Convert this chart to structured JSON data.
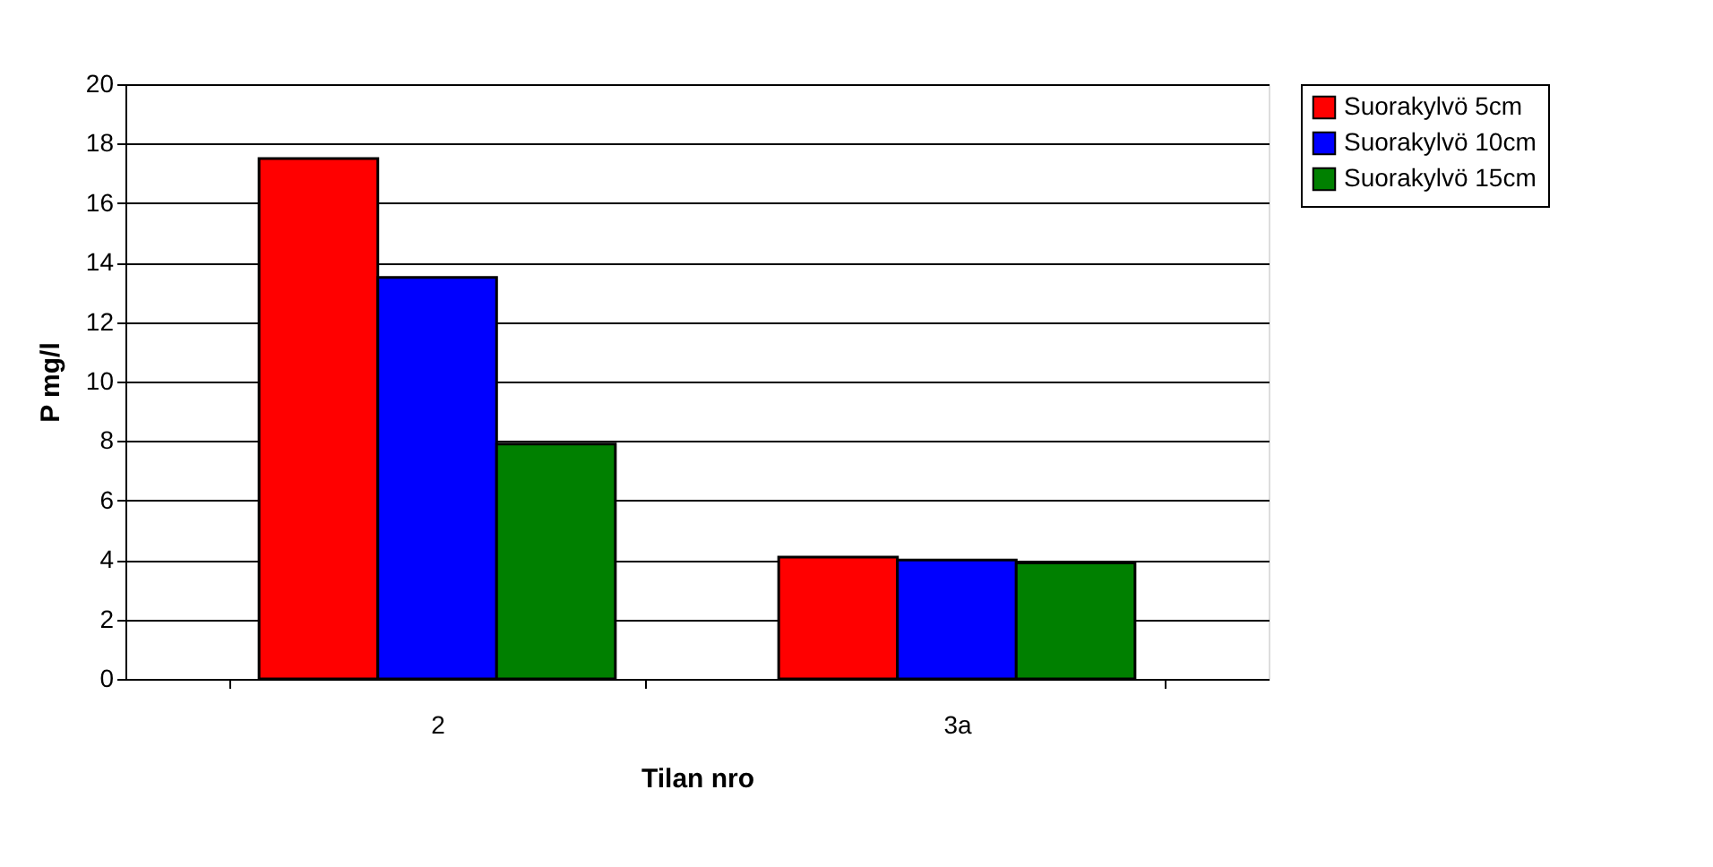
{
  "chart_data": {
    "type": "bar",
    "xlabel": "Tilan nro",
    "ylabel": "P mg/l",
    "categories": [
      "2",
      "3a"
    ],
    "series": [
      {
        "name": "Suorakylvö 5cm",
        "color": "#ff0000",
        "values": [
          17.5,
          4.1
        ]
      },
      {
        "name": "Suorakylvö 10cm",
        "color": "#0000ff",
        "values": [
          13.5,
          4.0
        ]
      },
      {
        "name": "Suorakylvö 15cm",
        "color": "#008000",
        "values": [
          7.9,
          3.9
        ]
      }
    ],
    "ylim": [
      0,
      20
    ],
    "yticks": [
      0,
      2,
      4,
      6,
      8,
      10,
      12,
      14,
      16,
      18,
      20
    ],
    "grid": "y",
    "legend": "right"
  }
}
